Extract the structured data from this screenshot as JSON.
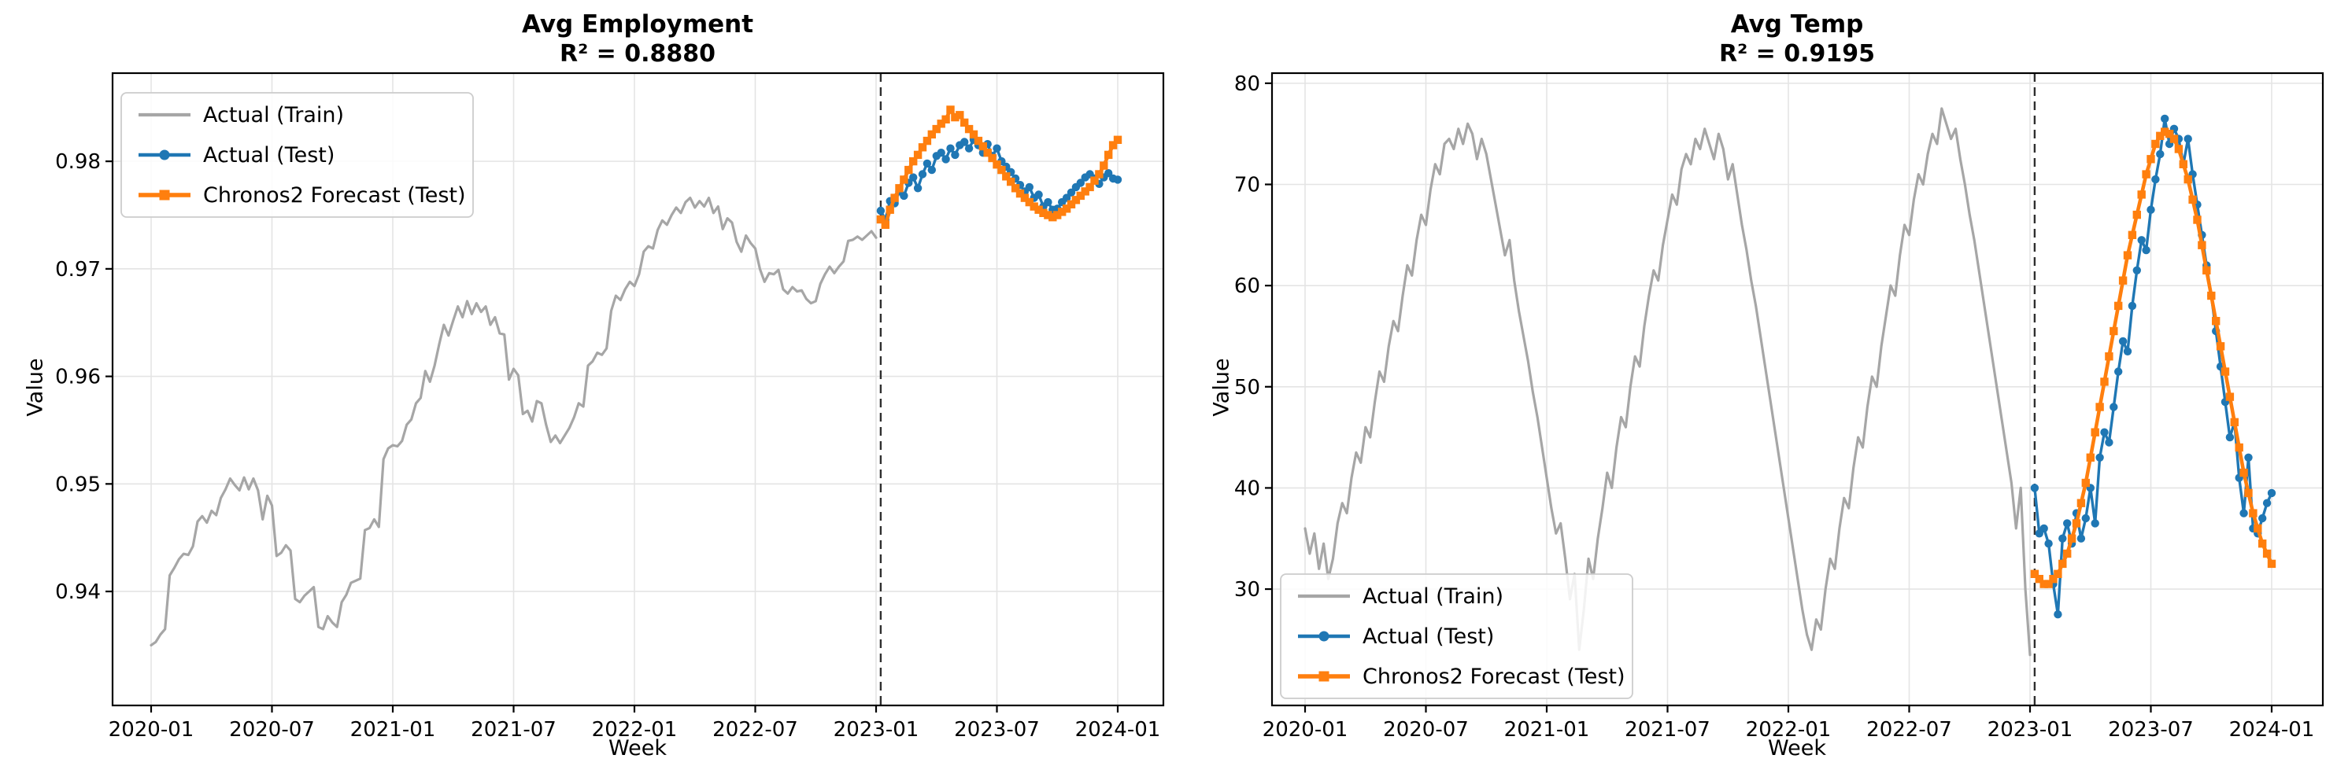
{
  "figure": {
    "background": "#ffffff"
  },
  "colors": {
    "train": "#a6a6a6",
    "test": "#1f77b4",
    "forecast": "#ff7f0e",
    "grid": "#e4e4e4",
    "split_line": "#2f2f2f",
    "spine": "#000000",
    "legend_border": "#cccccc"
  },
  "legend_labels": [
    "Actual (Train)",
    "Actual (Test)",
    "Chronos2 Forecast (Test)"
  ],
  "chart_data": [
    {
      "type": "line",
      "title": "Avg Employment",
      "subtitle": "R² = 0.8880",
      "xlabel": "Week",
      "ylabel": "Value",
      "x_tick_labels": [
        "2020-01",
        "2020-07",
        "2021-01",
        "2021-07",
        "2022-01",
        "2022-07",
        "2023-01",
        "2023-07",
        "2024-01"
      ],
      "y_ticks": [
        0.94,
        0.95,
        0.96,
        0.97,
        0.98
      ],
      "y_tick_labels": [
        "0.94",
        "0.95",
        "0.96",
        "0.97",
        "0.98"
      ],
      "ylim": [
        0.9294,
        0.9882
      ],
      "x_total_weeks": 208,
      "split_week": 157,
      "grid": true,
      "legend_loc": "upper left",
      "series": [
        {
          "name": "Actual (Train)",
          "color": "#a6a6a6",
          "marker": "none",
          "start_week": 0,
          "values": [
            0.935,
            0.9353,
            0.936,
            0.9365,
            0.9415,
            0.9422,
            0.943,
            0.9435,
            0.9434,
            0.9442,
            0.9465,
            0.947,
            0.9464,
            0.9475,
            0.9471,
            0.9487,
            0.9495,
            0.9505,
            0.9499,
            0.9494,
            0.9506,
            0.9495,
            0.9505,
            0.9494,
            0.9467,
            0.9489,
            0.948,
            0.9433,
            0.9436,
            0.9443,
            0.9438,
            0.9393,
            0.939,
            0.9396,
            0.94,
            0.9404,
            0.9367,
            0.9365,
            0.9377,
            0.9371,
            0.9367,
            0.939,
            0.9397,
            0.9408,
            0.941,
            0.9412,
            0.9457,
            0.9459,
            0.9467,
            0.946,
            0.9523,
            0.9533,
            0.9536,
            0.9535,
            0.954,
            0.9555,
            0.956,
            0.9575,
            0.958,
            0.9605,
            0.9595,
            0.961,
            0.963,
            0.9648,
            0.9638,
            0.9652,
            0.9665,
            0.9655,
            0.967,
            0.9658,
            0.9668,
            0.966,
            0.9665,
            0.9648,
            0.9655,
            0.964,
            0.9639,
            0.9597,
            0.9607,
            0.9601,
            0.9565,
            0.9568,
            0.9558,
            0.9577,
            0.9575,
            0.9555,
            0.9539,
            0.9545,
            0.9538,
            0.9545,
            0.9552,
            0.9562,
            0.9575,
            0.9572,
            0.961,
            0.9614,
            0.9622,
            0.962,
            0.9626,
            0.9661,
            0.9675,
            0.9671,
            0.9681,
            0.9688,
            0.9684,
            0.9695,
            0.9716,
            0.9721,
            0.9719,
            0.9736,
            0.9745,
            0.9741,
            0.975,
            0.9757,
            0.9752,
            0.9762,
            0.9766,
            0.9757,
            0.9763,
            0.9758,
            0.9766,
            0.9752,
            0.9758,
            0.9737,
            0.9747,
            0.9743,
            0.9725,
            0.9716,
            0.9731,
            0.9724,
            0.9719,
            0.97,
            0.9688,
            0.9696,
            0.9695,
            0.9699,
            0.9681,
            0.9677,
            0.9683,
            0.9679,
            0.968,
            0.9672,
            0.9668,
            0.967,
            0.9686,
            0.9695,
            0.9702,
            0.9696,
            0.9702,
            0.9707,
            0.9726,
            0.9727,
            0.973,
            0.9727,
            0.9731,
            0.9735,
            0.9729
          ]
        },
        {
          "name": "Actual (Test)",
          "color": "#1f77b4",
          "marker": "circle",
          "start_week": 157,
          "values": [
            0.9754,
            0.9746,
            0.9763,
            0.9761,
            0.9772,
            0.9768,
            0.978,
            0.9785,
            0.9775,
            0.9788,
            0.9798,
            0.9792,
            0.9805,
            0.9808,
            0.9802,
            0.9812,
            0.9806,
            0.9815,
            0.9818,
            0.9812,
            0.982,
            0.9815,
            0.9808,
            0.9816,
            0.9805,
            0.9812,
            0.98,
            0.9795,
            0.979,
            0.9784,
            0.9778,
            0.9772,
            0.9776,
            0.9766,
            0.9769,
            0.9758,
            0.9762,
            0.9755,
            0.9756,
            0.9762,
            0.9766,
            0.9771,
            0.9776,
            0.978,
            0.9785,
            0.9788,
            0.9784,
            0.9779,
            0.9785,
            0.9789,
            0.9784,
            0.9783
          ]
        },
        {
          "name": "Chronos2 Forecast (Test)",
          "color": "#ff7f0e",
          "marker": "square",
          "start_week": 157,
          "values": [
            0.9746,
            0.9741,
            0.9755,
            0.9766,
            0.9775,
            0.9783,
            0.9792,
            0.98,
            0.9806,
            0.9813,
            0.9819,
            0.9825,
            0.983,
            0.9835,
            0.9839,
            0.9848,
            0.9841,
            0.9843,
            0.9836,
            0.983,
            0.9825,
            0.9819,
            0.9814,
            0.9808,
            0.9803,
            0.9797,
            0.9792,
            0.9786,
            0.9781,
            0.9775,
            0.977,
            0.9766,
            0.9762,
            0.9758,
            0.9755,
            0.9752,
            0.975,
            0.9748,
            0.975,
            0.9753,
            0.9756,
            0.976,
            0.9764,
            0.9768,
            0.9772,
            0.9776,
            0.9782,
            0.9788,
            0.9796,
            0.9806,
            0.9815,
            0.982
          ]
        }
      ]
    },
    {
      "type": "line",
      "title": "Avg Temp",
      "subtitle": "R² = 0.9195",
      "xlabel": "Week",
      "ylabel": "Value",
      "x_tick_labels": [
        "2020-01",
        "2020-07",
        "2021-01",
        "2021-07",
        "2022-01",
        "2022-07",
        "2023-01",
        "2023-07",
        "2024-01"
      ],
      "y_ticks": [
        30,
        40,
        50,
        60,
        70,
        80
      ],
      "y_tick_labels": [
        "30",
        "40",
        "50",
        "60",
        "70",
        "80"
      ],
      "ylim": [
        18.5,
        81.0
      ],
      "x_total_weeks": 208,
      "split_week": 157,
      "grid": true,
      "legend_loc": "lower left",
      "series": [
        {
          "name": "Actual (Train)",
          "color": "#a6a6a6",
          "marker": "none",
          "start_week": 0,
          "values": [
            36,
            33.5,
            35.5,
            32,
            34.5,
            31,
            33,
            36.5,
            38.5,
            37.5,
            41,
            43.5,
            42.5,
            46,
            45,
            48.5,
            51.5,
            50.5,
            54,
            56.5,
            55.5,
            59,
            62,
            61,
            64.5,
            67,
            66,
            69.5,
            72,
            71,
            74,
            74.5,
            73.5,
            75.5,
            74,
            76,
            75,
            72.5,
            74.5,
            73,
            70.5,
            68,
            65.5,
            63,
            64.5,
            60.5,
            57.5,
            55,
            52.5,
            49.5,
            47,
            44,
            41,
            38,
            35.5,
            36.5,
            33,
            29,
            31.5,
            24,
            28,
            33,
            31,
            35,
            38,
            41.5,
            40,
            44,
            47,
            46,
            50,
            53,
            52,
            56,
            59,
            61.5,
            60.5,
            64,
            66.5,
            69,
            68,
            71.5,
            73,
            72,
            74.5,
            73.5,
            75.5,
            74,
            72.5,
            75,
            73.5,
            70.5,
            72,
            69,
            66,
            63.5,
            60.5,
            58,
            55,
            52,
            49,
            46,
            43,
            40,
            37,
            34,
            31,
            28,
            25.5,
            24,
            27,
            26,
            30,
            33,
            32,
            36,
            39,
            38,
            42,
            45,
            44,
            48,
            51,
            50,
            54,
            57,
            60,
            59,
            63,
            66,
            65,
            68.5,
            71,
            70,
            73,
            75,
            74,
            77.5,
            76,
            74.5,
            75.5,
            72.5,
            70,
            67,
            64.5,
            61.5,
            58.5,
            55.5,
            52.5,
            49.5,
            46.5,
            43.5,
            40.5,
            36,
            40,
            30,
            23.5
          ]
        },
        {
          "name": "Actual (Test)",
          "color": "#1f77b4",
          "marker": "circle",
          "start_week": 157,
          "values": [
            40,
            35.5,
            36,
            34.5,
            30.5,
            27.5,
            35,
            36.5,
            34.5,
            37.5,
            35,
            37,
            40,
            36.5,
            43,
            45.5,
            44.5,
            48,
            51.5,
            54.5,
            53.5,
            58,
            61.5,
            64.5,
            63.5,
            67.5,
            70.5,
            73,
            76.5,
            74,
            75.5,
            74.5,
            72,
            74.5,
            71,
            68,
            65,
            62,
            59,
            55.5,
            52,
            48.5,
            45,
            46.5,
            41,
            37.5,
            43,
            36,
            35.5,
            37,
            38.5,
            39.5
          ]
        },
        {
          "name": "Chronos2 Forecast (Test)",
          "color": "#ff7f0e",
          "marker": "square",
          "start_week": 157,
          "values": [
            31.5,
            31,
            30.5,
            30.5,
            31,
            31.5,
            32.5,
            33.5,
            35,
            36.5,
            38.5,
            40.5,
            43,
            45.5,
            48,
            50.5,
            53,
            55.5,
            58,
            60.5,
            63,
            65,
            67,
            69,
            71,
            72.5,
            74,
            74.8,
            75.2,
            75,
            74.5,
            73.5,
            72,
            70.5,
            68.5,
            66.5,
            64,
            61.5,
            59,
            56.5,
            54,
            51.5,
            49,
            46.5,
            44,
            41.5,
            39.5,
            37.5,
            36,
            34.5,
            33.5,
            32.5
          ]
        }
      ]
    }
  ]
}
